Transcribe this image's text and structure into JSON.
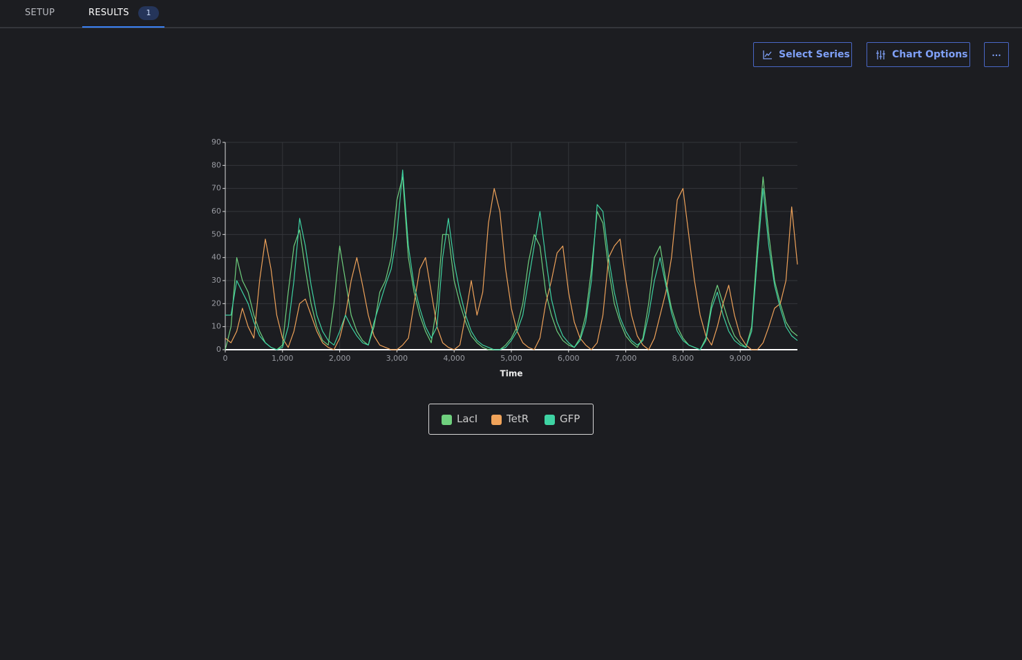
{
  "tabs": [
    {
      "label": "SETUP"
    },
    {
      "label": "RESULTS",
      "badge": "1"
    }
  ],
  "toolbar": {
    "select_series": "Select Series",
    "chart_options": "Chart Options"
  },
  "chart_data": {
    "type": "line",
    "xlabel": "Time",
    "xlim": [
      0,
      10000
    ],
    "ylim": [
      0,
      90
    ],
    "xticks": [
      0,
      {
        "value": 1000,
        "label": "1,000"
      },
      {
        "value": 2000,
        "label": "2,000"
      },
      {
        "value": 3000,
        "label": "3,000"
      },
      {
        "value": 4000,
        "label": "4,000"
      },
      {
        "value": 5000,
        "label": "5,000"
      },
      {
        "value": 6000,
        "label": "6,000"
      },
      {
        "value": 7000,
        "label": "7,000"
      },
      {
        "value": 8000,
        "label": "8,000"
      },
      {
        "value": 9000,
        "label": "9,000"
      }
    ],
    "yticks": [
      0,
      10,
      20,
      30,
      40,
      50,
      60,
      70,
      80,
      90
    ],
    "grid": true,
    "x": [
      0,
      100,
      200,
      300,
      400,
      500,
      600,
      700,
      800,
      900,
      1000,
      1100,
      1200,
      1300,
      1400,
      1500,
      1600,
      1700,
      1800,
      1900,
      2000,
      2100,
      2200,
      2300,
      2400,
      2500,
      2600,
      2700,
      2800,
      2900,
      3000,
      3100,
      3200,
      3300,
      3400,
      3500,
      3600,
      3700,
      3800,
      3900,
      4000,
      4100,
      4200,
      4300,
      4400,
      4500,
      4600,
      4700,
      4800,
      4900,
      5000,
      5100,
      5200,
      5300,
      5400,
      5500,
      5600,
      5700,
      5800,
      5900,
      6000,
      6100,
      6200,
      6300,
      6400,
      6500,
      6600,
      6700,
      6800,
      6900,
      7000,
      7100,
      7200,
      7300,
      7400,
      7500,
      7600,
      7700,
      7800,
      7900,
      8000,
      8100,
      8200,
      8300,
      8400,
      8500,
      8600,
      8700,
      8800,
      8900,
      9000,
      9100,
      9200,
      9300,
      9400,
      9500,
      9600,
      9700,
      9800,
      9900,
      10000
    ],
    "series": [
      {
        "name": "LacI",
        "color": "#6fd07e",
        "values": [
          0,
          10,
          40,
          30,
          25,
          15,
          8,
          3,
          1,
          0,
          2,
          25,
          45,
          52,
          35,
          20,
          10,
          4,
          2,
          20,
          45,
          30,
          15,
          8,
          4,
          2,
          10,
          25,
          30,
          40,
          65,
          75,
          40,
          25,
          15,
          8,
          3,
          20,
          50,
          50,
          30,
          20,
          12,
          6,
          3,
          1,
          0,
          0,
          0,
          2,
          5,
          10,
          20,
          38,
          50,
          45,
          25,
          15,
          8,
          4,
          2,
          1,
          5,
          15,
          35,
          60,
          55,
          35,
          20,
          12,
          6,
          3,
          1,
          5,
          20,
          40,
          45,
          30,
          18,
          10,
          5,
          2,
          1,
          0,
          5,
          20,
          28,
          20,
          12,
          6,
          3,
          1,
          10,
          45,
          75,
          50,
          30,
          20,
          12,
          8,
          6
        ]
      },
      {
        "name": "TetR",
        "color": "#f0a35a",
        "values": [
          5,
          3,
          8,
          18,
          10,
          5,
          30,
          48,
          35,
          15,
          5,
          1,
          8,
          20,
          22,
          15,
          8,
          3,
          1,
          0,
          5,
          15,
          30,
          40,
          28,
          15,
          6,
          2,
          1,
          0,
          0,
          2,
          5,
          20,
          35,
          40,
          25,
          10,
          3,
          1,
          0,
          2,
          15,
          30,
          15,
          25,
          55,
          70,
          60,
          35,
          18,
          8,
          3,
          1,
          0,
          5,
          20,
          30,
          42,
          45,
          25,
          12,
          5,
          2,
          0,
          3,
          15,
          40,
          45,
          48,
          30,
          15,
          6,
          2,
          0,
          5,
          15,
          25,
          40,
          65,
          70,
          50,
          30,
          15,
          6,
          2,
          10,
          20,
          28,
          15,
          6,
          2,
          0,
          0,
          3,
          10,
          18,
          20,
          30,
          62,
          37
        ]
      },
      {
        "name": "GFP",
        "color": "#3ed3a3",
        "values": [
          15,
          15,
          30,
          25,
          20,
          12,
          6,
          3,
          1,
          0,
          1,
          10,
          30,
          57,
          45,
          28,
          15,
          8,
          4,
          2,
          8,
          15,
          10,
          6,
          3,
          2,
          12,
          20,
          28,
          35,
          50,
          78,
          45,
          28,
          18,
          10,
          5,
          10,
          40,
          57,
          38,
          25,
          15,
          8,
          4,
          2,
          1,
          0,
          0,
          1,
          4,
          8,
          15,
          30,
          45,
          60,
          40,
          22,
          12,
          6,
          3,
          1,
          4,
          12,
          30,
          63,
          60,
          40,
          25,
          14,
          8,
          4,
          2,
          4,
          15,
          30,
          40,
          28,
          16,
          8,
          4,
          2,
          1,
          0,
          4,
          18,
          25,
          15,
          8,
          4,
          2,
          1,
          8,
          40,
          70,
          45,
          28,
          18,
          10,
          6,
          4
        ]
      }
    ]
  }
}
